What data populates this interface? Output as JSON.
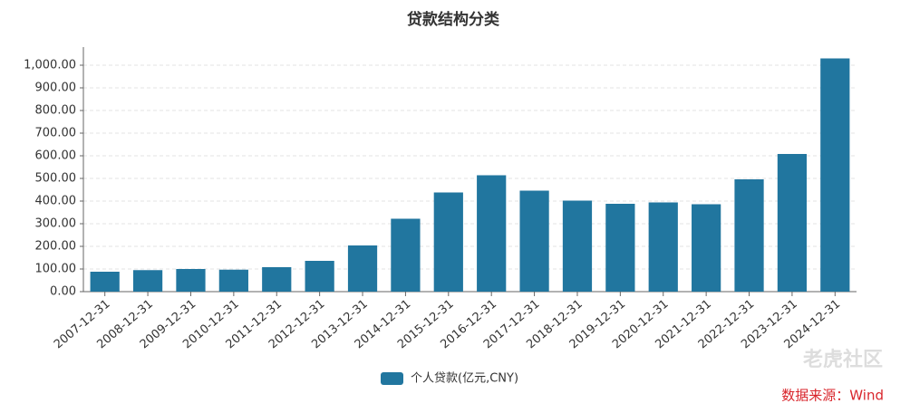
{
  "chart_data": {
    "type": "bar",
    "title": "贷款结构分类",
    "categories": [
      "2007-12-31",
      "2008-12-31",
      "2009-12-31",
      "2010-12-31",
      "2011-12-31",
      "2012-12-31",
      "2013-12-31",
      "2014-12-31",
      "2015-12-31",
      "2016-12-31",
      "2017-12-31",
      "2018-12-31",
      "2019-12-31",
      "2020-12-31",
      "2021-12-31",
      "2022-12-31",
      "2023-12-31",
      "2024-12-31"
    ],
    "series": [
      {
        "name": "个人贷款(亿元,CNY)",
        "color": "#21769f",
        "values": [
          88,
          95,
          100,
          97,
          108,
          136,
          204,
          322,
          438,
          514,
          446,
          402,
          388,
          394,
          386,
          496,
          608,
          1030
        ]
      }
    ],
    "ylim": [
      0,
      1080
    ],
    "yticks": [
      {
        "value": 0,
        "label": "0.00"
      },
      {
        "value": 100,
        "label": "100.00"
      },
      {
        "value": 200,
        "label": "200.00"
      },
      {
        "value": 300,
        "label": "300.00"
      },
      {
        "value": 400,
        "label": "400.00"
      },
      {
        "value": 500,
        "label": "500.00"
      },
      {
        "value": 600,
        "label": "600.00"
      },
      {
        "value": 700,
        "label": "700.00"
      },
      {
        "value": 800,
        "label": "800.00"
      },
      {
        "value": 900,
        "label": "900.00"
      },
      {
        "value": 1000,
        "label": "1,000.00"
      }
    ],
    "grid": true,
    "legend": "bottom",
    "source": "数据来源：Wind",
    "watermark": "老虎社区"
  }
}
